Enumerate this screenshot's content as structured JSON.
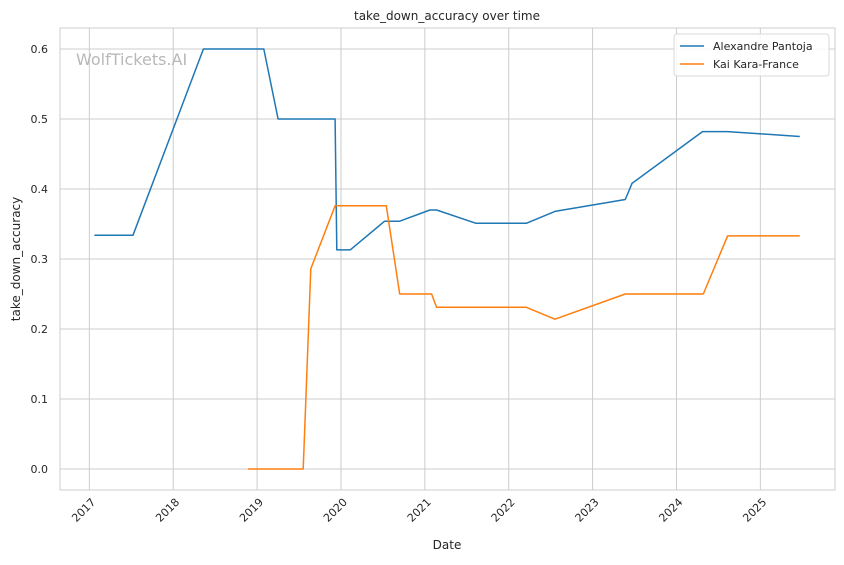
{
  "chart_data": {
    "type": "line",
    "title": "take_down_accuracy over time",
    "xlabel": "Date",
    "ylabel": "take_down_accuracy",
    "xlim": [
      2016.65,
      2025.89
    ],
    "ylim": [
      -0.03,
      0.63
    ],
    "xticks": [
      2017,
      2018,
      2019,
      2020,
      2021,
      2022,
      2023,
      2024,
      2025
    ],
    "xtick_labels": [
      "2017",
      "2018",
      "2019",
      "2020",
      "2021",
      "2022",
      "2023",
      "2024",
      "2025"
    ],
    "yticks": [
      0.0,
      0.1,
      0.2,
      0.3,
      0.4,
      0.5,
      0.6
    ],
    "ytick_labels": [
      "0.0",
      "0.1",
      "0.2",
      "0.3",
      "0.4",
      "0.5",
      "0.6"
    ],
    "grid": true,
    "legend_position": "top-right",
    "watermark": "WolfTickets.AI",
    "series": [
      {
        "name": "Alexandre Pantoja",
        "color": "#1f77b4",
        "x": [
          2017.06,
          2017.52,
          2018.36,
          2019.08,
          2019.25,
          2019.93,
          2019.95,
          2020.11,
          2020.52,
          2020.7,
          2021.06,
          2021.14,
          2021.61,
          2022.21,
          2022.55,
          2023.39,
          2023.47,
          2024.31,
          2024.61,
          2025.47
        ],
        "y": [
          0.334,
          0.334,
          0.6,
          0.6,
          0.5,
          0.5,
          0.313,
          0.313,
          0.354,
          0.354,
          0.37,
          0.37,
          0.351,
          0.351,
          0.368,
          0.385,
          0.408,
          0.482,
          0.482,
          0.475
        ]
      },
      {
        "name": "Kai Kara-France",
        "color": "#ff7f0e",
        "x": [
          2018.89,
          2019.55,
          2019.64,
          2019.93,
          2020.54,
          2020.7,
          2021.08,
          2021.14,
          2022.21,
          2022.55,
          2023.39,
          2024.32,
          2024.61,
          2025.47
        ],
        "y": [
          0.0,
          0.0,
          0.286,
          0.376,
          0.376,
          0.25,
          0.25,
          0.231,
          0.231,
          0.214,
          0.25,
          0.25,
          0.333,
          0.333
        ]
      }
    ]
  }
}
